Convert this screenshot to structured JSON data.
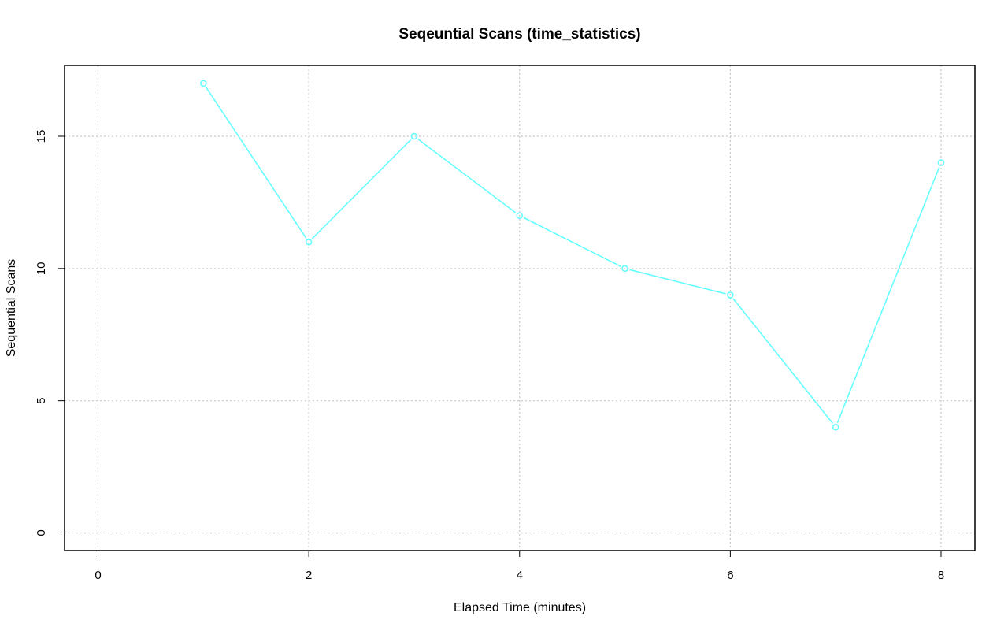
{
  "chart_data": {
    "type": "line",
    "title": "Seqeuntial Scans (time_statistics)",
    "xlabel": "Elapsed Time (minutes)",
    "ylabel": "Sequential Scans",
    "xlim": [
      0,
      8
    ],
    "ylim": [
      0,
      17
    ],
    "xticks": [
      0,
      2,
      4,
      6,
      8
    ],
    "yticks": [
      0,
      5,
      10,
      15
    ],
    "xtick_labels": [
      "0",
      "2",
      "4",
      "6",
      "8"
    ],
    "ytick_labels": [
      "0",
      "5",
      "10",
      "15"
    ],
    "grid": true,
    "series": [
      {
        "color": "#66ffff",
        "marker": "open-circle",
        "x": [
          1,
          2,
          3,
          4,
          5,
          6,
          7,
          8
        ],
        "y": [
          17,
          11,
          15,
          12,
          10,
          9,
          4,
          14
        ]
      }
    ]
  }
}
